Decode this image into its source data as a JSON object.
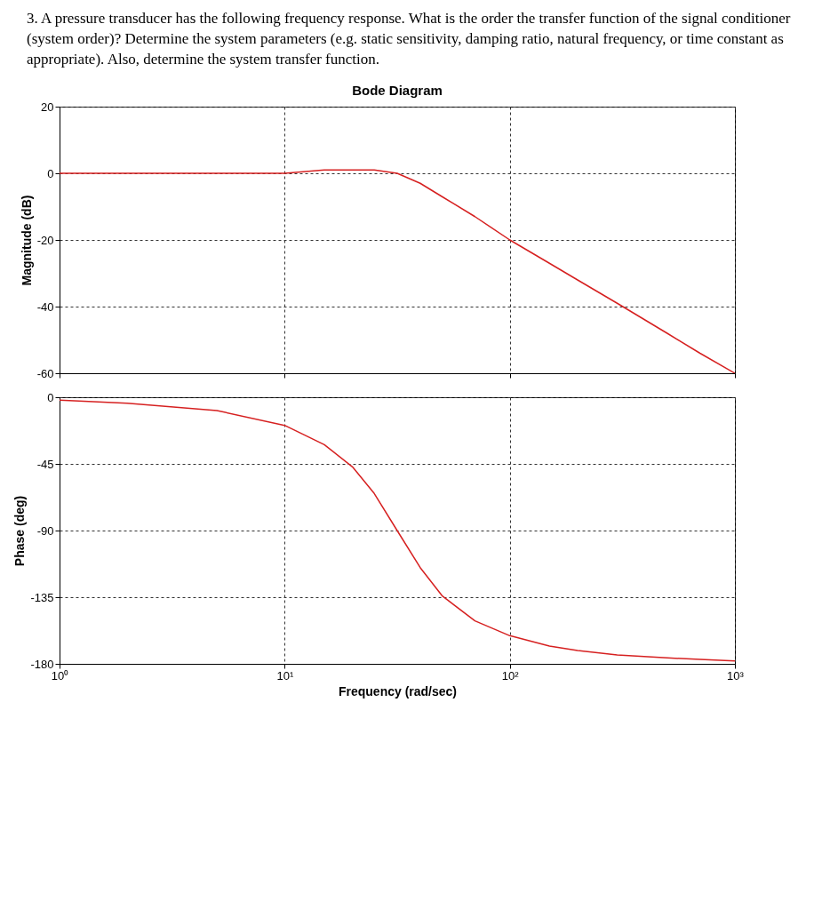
{
  "chart_data": [
    {
      "type": "line",
      "title": "Bode Diagram",
      "ylabel": "Magnitude (dB)",
      "annotations": [
        "3. A pressure transducer has the following frequency response. What is the order the transfer function of the signal conditioner (system order)? Determine the system parameters (e.g. static sensitivity, damping ratio, natural frequency, or time constant as appropriate). Also, determine the system transfer function."
      ],
      "x": [
        1,
        2,
        5,
        10,
        15,
        20,
        25,
        31.6,
        40,
        50,
        70,
        100,
        150,
        200,
        300,
        500,
        700,
        1000
      ],
      "series": [
        {
          "color": "#d62020",
          "values": [
            0,
            0,
            0,
            0,
            1,
            1,
            1,
            0,
            -3,
            -7,
            -13,
            -20,
            -27,
            -32,
            -39,
            -48,
            -54,
            -60
          ]
        }
      ],
      "log": "x",
      "xlim": [
        1,
        1000
      ],
      "xticks": [
        {
          "value": 1,
          "label": null
        },
        {
          "value": 10,
          "label": null
        },
        {
          "value": 100,
          "label": null
        },
        {
          "value": 1000,
          "label": null
        }
      ],
      "tick_labels": "y",
      "ylim": [
        -60,
        20
      ],
      "yticks": [
        -60,
        -40,
        -20,
        0,
        20
      ],
      "grid": true,
      "line_style": "solid"
    },
    {
      "type": "line",
      "xlabel": "Frequency (rad/sec)",
      "ylabel": "Phase (deg)",
      "x": [
        1,
        2,
        5,
        10,
        15,
        20,
        25,
        31.6,
        40,
        50,
        70,
        100,
        150,
        200,
        300,
        500,
        700,
        1000
      ],
      "series": [
        {
          "color": "#d62020",
          "values": [
            -2,
            -4,
            -9,
            -19,
            -32,
            -47,
            -65,
            -90,
            -115,
            -134,
            -151,
            -161,
            -168,
            -171,
            -174,
            -176,
            -177,
            -178
          ]
        }
      ],
      "log": "x",
      "xlim": [
        1,
        1000
      ],
      "xticks": [
        {
          "value": 1,
          "label": "10⁰"
        },
        {
          "value": 10,
          "label": "10¹"
        },
        {
          "value": 100,
          "label": "10²"
        },
        {
          "value": 1000,
          "label": "10³"
        }
      ],
      "ylim": [
        -180,
        0
      ],
      "yticks": [
        -180,
        -135,
        -90,
        -45,
        0
      ],
      "grid": true,
      "line_style": "solid"
    }
  ]
}
